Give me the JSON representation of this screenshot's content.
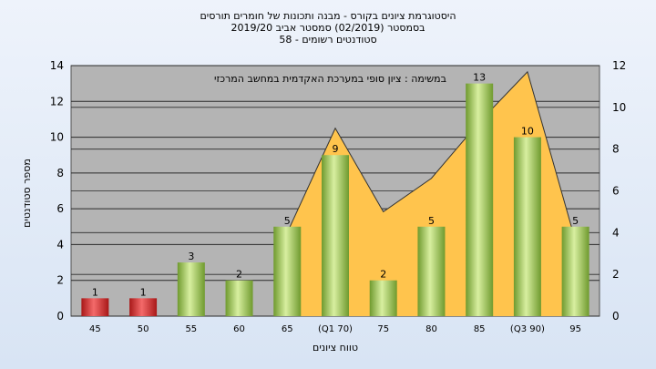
{
  "titles": {
    "line1": "היסטוגרמת ציונים בקורס - מבנה ותכונות של חומרים תורסים",
    "line2": "בסמסטר  (02/2019)  סמסטר אביב 2019/20",
    "line3": "סטודנטים רשומים - 58"
  },
  "note": "במשימה : ציון סופי במערכת האקדמית במחשב המרכזי",
  "colors": {
    "fail_bar": "#cc2a2a",
    "pass_bar": "#9cc45a",
    "area": "#ffc44d",
    "plot_bg": "#b4b4b4"
  },
  "chart_data": {
    "type": "bar",
    "xlabel": "טווח ציונים",
    "ylabel": "מספר סטודנטים",
    "categories": [
      "45",
      "50",
      "55",
      "60",
      "65",
      "(Q1 70)",
      "75",
      "80",
      "85",
      "(Q3 90)",
      "95"
    ],
    "values": [
      1,
      1,
      3,
      2,
      5,
      9,
      2,
      5,
      13,
      10,
      5
    ],
    "fail": [
      true,
      true,
      false,
      false,
      false,
      false,
      false,
      false,
      false,
      false,
      false
    ],
    "ylim": [
      0,
      14
    ],
    "yticks": [
      "0",
      "2",
      "4",
      "6",
      "8",
      "10",
      "12",
      "14"
    ],
    "y2lim": [
      0,
      12
    ],
    "y2ticks": [
      "0",
      "2",
      "4",
      "6",
      "8",
      "10",
      "12"
    ],
    "area_series": {
      "x_index": [
        4,
        5,
        6,
        7,
        8,
        9,
        10
      ],
      "values": [
        4,
        9,
        5,
        6.6,
        9.3,
        11.7,
        3.6
      ]
    },
    "grid": true
  }
}
